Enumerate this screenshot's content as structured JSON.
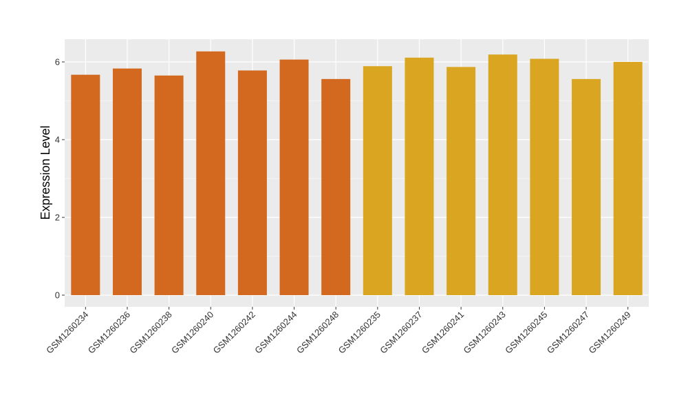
{
  "chart_data": {
    "type": "bar",
    "title": "",
    "xlabel": "",
    "ylabel": "Expression Level",
    "ylim": [
      0,
      6.6
    ],
    "yticks": [
      0,
      2,
      4,
      6
    ],
    "ytick_labels": [
      "0",
      "2",
      "4",
      "6"
    ],
    "grid": true,
    "legend": "none",
    "categories": [
      "GSM1260234",
      "GSM1260236",
      "GSM1260238",
      "GSM1260240",
      "GSM1260242",
      "GSM1260244",
      "GSM1260248",
      "GSM1260235",
      "GSM1260237",
      "GSM1260241",
      "GSM1260243",
      "GSM1260245",
      "GSM1260247",
      "GSM1260249"
    ],
    "values": [
      5.67,
      5.83,
      5.65,
      6.27,
      5.78,
      6.06,
      5.56,
      5.89,
      6.11,
      5.87,
      6.19,
      6.08,
      5.56,
      6.0
    ],
    "groups": [
      0,
      0,
      0,
      0,
      0,
      0,
      0,
      1,
      1,
      1,
      1,
      1,
      1,
      1
    ],
    "group_colors": [
      "#d2691e",
      "#daa520"
    ],
    "panel_color": "#ebebeb",
    "grid_color": "#ffffff"
  }
}
